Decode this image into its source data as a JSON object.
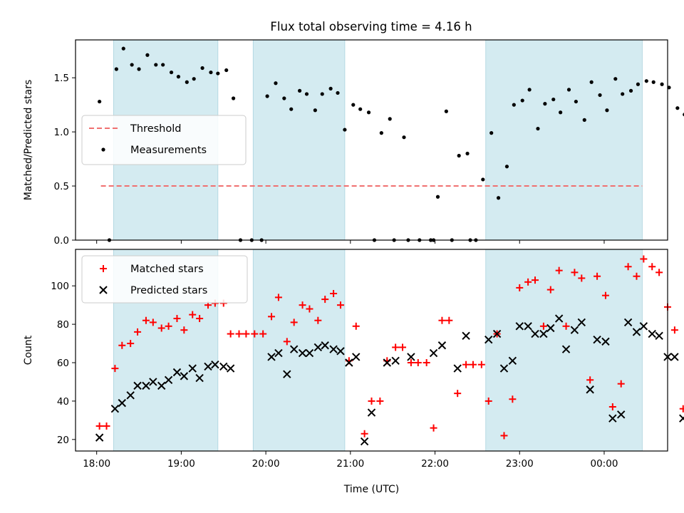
{
  "title": "Flux total observing time = 4.16 h",
  "chart_data": [
    {
      "type": "scatter",
      "panel": "top",
      "ylabel": "Matched/Predicted stars",
      "xlabel": "",
      "xlim": [
        "17:45",
        "24:45"
      ],
      "ylim": [
        0,
        1.85
      ],
      "yticks": [
        0.0,
        0.5,
        1.0,
        1.5
      ],
      "ytick_labels": [
        "0.0",
        "0.5",
        "1.0",
        "1.5"
      ],
      "legend_position": "center-left",
      "legend": [
        {
          "label": "Threshold",
          "marker": "dashed-line",
          "color": "#f07070"
        },
        {
          "label": "Measurements",
          "marker": "dot",
          "color": "#000000"
        }
      ],
      "threshold": {
        "y": 0.5,
        "x_start": "18:03",
        "x_end": "24:27",
        "color": "#f07070"
      },
      "shaded_intervals": [
        [
          "18:12",
          "19:26"
        ],
        [
          "19:51",
          "20:56"
        ],
        [
          "22:36",
          "24:27"
        ]
      ],
      "shade_color": "#d4ebf1",
      "series": [
        {
          "color": "#000000",
          "points": [
            [
              "18:02",
              1.28
            ],
            [
              "18:09",
              0.0
            ],
            [
              "18:14",
              1.58
            ],
            [
              "18:19",
              1.77
            ],
            [
              "18:25",
              1.62
            ],
            [
              "18:30",
              1.58
            ],
            [
              "18:36",
              1.71
            ],
            [
              "18:42",
              1.62
            ],
            [
              "18:47",
              1.62
            ],
            [
              "18:53",
              1.55
            ],
            [
              "18:58",
              1.51
            ],
            [
              "19:04",
              1.46
            ],
            [
              "19:09",
              1.49
            ],
            [
              "19:15",
              1.59
            ],
            [
              "19:21",
              1.55
            ],
            [
              "19:26",
              1.54
            ],
            [
              "19:32",
              1.57
            ],
            [
              "19:37",
              1.31
            ],
            [
              "19:42",
              0.0
            ],
            [
              "19:50",
              0.0
            ],
            [
              "19:57",
              0.0
            ],
            [
              "20:01",
              1.33
            ],
            [
              "20:07",
              1.45
            ],
            [
              "20:13",
              1.31
            ],
            [
              "20:18",
              1.21
            ],
            [
              "20:24",
              1.38
            ],
            [
              "20:29",
              1.35
            ],
            [
              "20:35",
              1.2
            ],
            [
              "20:40",
              1.35
            ],
            [
              "20:46",
              1.4
            ],
            [
              "20:51",
              1.36
            ],
            [
              "20:56",
              1.02
            ],
            [
              "21:02",
              1.25
            ],
            [
              "21:07",
              1.21
            ],
            [
              "21:13",
              1.18
            ],
            [
              "21:17",
              0.0
            ],
            [
              "21:22",
              0.99
            ],
            [
              "21:28",
              1.12
            ],
            [
              "21:31",
              0.0
            ],
            [
              "21:38",
              0.95
            ],
            [
              "21:41",
              0.0
            ],
            [
              "21:49",
              0.0
            ],
            [
              "21:57",
              0.0
            ],
            [
              "21:59",
              0.0
            ],
            [
              "22:02",
              0.4
            ],
            [
              "22:08",
              1.19
            ],
            [
              "22:12",
              0.0
            ],
            [
              "22:17",
              0.78
            ],
            [
              "22:23",
              0.8
            ],
            [
              "22:25",
              0.0
            ],
            [
              "22:29",
              0.0
            ],
            [
              "22:34",
              0.56
            ],
            [
              "22:40",
              0.99
            ],
            [
              "22:45",
              0.39
            ],
            [
              "22:51",
              0.68
            ],
            [
              "22:56",
              1.25
            ],
            [
              "23:02",
              1.29
            ],
            [
              "23:07",
              1.39
            ],
            [
              "23:13",
              1.03
            ],
            [
              "23:18",
              1.26
            ],
            [
              "23:24",
              1.3
            ],
            [
              "23:29",
              1.18
            ],
            [
              "23:35",
              1.39
            ],
            [
              "23:40",
              1.28
            ],
            [
              "23:46",
              1.11
            ],
            [
              "23:51",
              1.46
            ],
            [
              "23:57",
              1.34
            ],
            [
              "24:02",
              1.2
            ],
            [
              "24:08",
              1.49
            ],
            [
              "24:13",
              1.35
            ],
            [
              "24:19",
              1.38
            ],
            [
              "24:24",
              1.44
            ],
            [
              "24:30",
              1.47
            ],
            [
              "24:35",
              1.46
            ],
            [
              "24:41",
              1.44
            ],
            [
              "24:46",
              1.41
            ],
            [
              "24:52",
              1.22
            ],
            [
              "24:57",
              1.16
            ]
          ]
        }
      ]
    },
    {
      "type": "scatter",
      "panel": "bottom",
      "ylabel": "Count",
      "xlabel": "Time (UTC)",
      "xlim": [
        "17:45",
        "24:45"
      ],
      "ylim": [
        14,
        119
      ],
      "yticks": [
        20,
        40,
        60,
        80,
        100
      ],
      "ytick_labels": [
        "20",
        "40",
        "60",
        "80",
        "100"
      ],
      "xticks": [
        "18:00",
        "19:00",
        "20:00",
        "21:00",
        "22:00",
        "23:00",
        "24:00"
      ],
      "xtick_labels": [
        "18:00",
        "19:00",
        "20:00",
        "21:00",
        "22:00",
        "23:00",
        "00:00"
      ],
      "legend_position": "top-left",
      "legend": [
        {
          "label": "Matched stars",
          "marker": "plus",
          "color": "#ff0000"
        },
        {
          "label": "Predicted stars",
          "marker": "x",
          "color": "#000000"
        }
      ],
      "shaded_intervals": [
        [
          "18:12",
          "19:26"
        ],
        [
          "19:51",
          "20:56"
        ],
        [
          "22:36",
          "24:27"
        ]
      ],
      "shade_color": "#d4ebf1",
      "series": [
        {
          "name": "Matched stars",
          "color": "#ff0000",
          "points": [
            [
              "18:02",
              27
            ],
            [
              "18:07",
              27
            ],
            [
              "18:13",
              57
            ],
            [
              "18:18",
              69
            ],
            [
              "18:24",
              70
            ],
            [
              "18:29",
              76
            ],
            [
              "18:35",
              82
            ],
            [
              "18:40",
              81
            ],
            [
              "18:46",
              78
            ],
            [
              "18:51",
              79
            ],
            [
              "18:57",
              83
            ],
            [
              "19:02",
              77
            ],
            [
              "19:08",
              85
            ],
            [
              "19:13",
              83
            ],
            [
              "19:19",
              90
            ],
            [
              "19:24",
              91
            ],
            [
              "19:30",
              91
            ],
            [
              "19:35",
              75
            ],
            [
              "19:41",
              75
            ],
            [
              "19:46",
              75
            ],
            [
              "19:52",
              75
            ],
            [
              "19:58",
              75
            ],
            [
              "20:04",
              84
            ],
            [
              "20:09",
              94
            ],
            [
              "20:15",
              71
            ],
            [
              "20:20",
              81
            ],
            [
              "20:26",
              90
            ],
            [
              "20:31",
              88
            ],
            [
              "20:37",
              82
            ],
            [
              "20:42",
              93
            ],
            [
              "20:48",
              96
            ],
            [
              "20:53",
              90
            ],
            [
              "20:59",
              61
            ],
            [
              "21:04",
              79
            ],
            [
              "21:10",
              23
            ],
            [
              "21:15",
              40
            ],
            [
              "21:21",
              40
            ],
            [
              "21:26",
              61
            ],
            [
              "21:32",
              68
            ],
            [
              "21:37",
              68
            ],
            [
              "21:43",
              60
            ],
            [
              "21:48",
              60
            ],
            [
              "21:54",
              60
            ],
            [
              "21:59",
              26
            ],
            [
              "22:05",
              82
            ],
            [
              "22:10",
              82
            ],
            [
              "22:16",
              44
            ],
            [
              "22:22",
              59
            ],
            [
              "22:27",
              59
            ],
            [
              "22:33",
              59
            ],
            [
              "22:38",
              40
            ],
            [
              "22:44",
              75
            ],
            [
              "22:49",
              22
            ],
            [
              "22:55",
              41
            ],
            [
              "23:00",
              99
            ],
            [
              "23:06",
              102
            ],
            [
              "23:11",
              103
            ],
            [
              "23:17",
              79
            ],
            [
              "23:22",
              98
            ],
            [
              "23:28",
              108
            ],
            [
              "23:33",
              79
            ],
            [
              "23:39",
              107
            ],
            [
              "23:44",
              104
            ],
            [
              "23:50",
              51
            ],
            [
              "23:55",
              105
            ],
            [
              "24:01",
              95
            ],
            [
              "24:06",
              37
            ],
            [
              "24:12",
              49
            ],
            [
              "24:17",
              110
            ],
            [
              "24:23",
              105
            ],
            [
              "24:28",
              114
            ],
            [
              "24:34",
              110
            ],
            [
              "24:39",
              107
            ],
            [
              "24:45",
              89
            ],
            [
              "24:50",
              77
            ],
            [
              "24:56",
              36
            ]
          ]
        },
        {
          "name": "Predicted stars",
          "color": "#000000",
          "points": [
            [
              "18:02",
              21
            ],
            [
              "18:13",
              36
            ],
            [
              "18:18",
              39
            ],
            [
              "18:24",
              43
            ],
            [
              "18:29",
              48
            ],
            [
              "18:35",
              48
            ],
            [
              "18:40",
              50
            ],
            [
              "18:46",
              48
            ],
            [
              "18:51",
              51
            ],
            [
              "18:57",
              55
            ],
            [
              "19:02",
              53
            ],
            [
              "19:08",
              57
            ],
            [
              "19:13",
              52
            ],
            [
              "19:19",
              58
            ],
            [
              "19:24",
              59
            ],
            [
              "19:30",
              58
            ],
            [
              "19:35",
              57
            ],
            [
              "20:04",
              63
            ],
            [
              "20:09",
              65
            ],
            [
              "20:15",
              54
            ],
            [
              "20:20",
              67
            ],
            [
              "20:26",
              65
            ],
            [
              "20:31",
              65
            ],
            [
              "20:37",
              68
            ],
            [
              "20:42",
              69
            ],
            [
              "20:48",
              67
            ],
            [
              "20:53",
              66
            ],
            [
              "20:59",
              60
            ],
            [
              "21:04",
              63
            ],
            [
              "21:10",
              19
            ],
            [
              "21:15",
              34
            ],
            [
              "21:26",
              60
            ],
            [
              "21:32",
              61
            ],
            [
              "21:43",
              63
            ],
            [
              "21:59",
              65
            ],
            [
              "22:05",
              69
            ],
            [
              "22:16",
              57
            ],
            [
              "22:22",
              74
            ],
            [
              "22:38",
              72
            ],
            [
              "22:44",
              75
            ],
            [
              "22:49",
              57
            ],
            [
              "22:55",
              61
            ],
            [
              "23:00",
              79
            ],
            [
              "23:06",
              79
            ],
            [
              "23:11",
              75
            ],
            [
              "23:17",
              75
            ],
            [
              "23:22",
              78
            ],
            [
              "23:28",
              83
            ],
            [
              "23:33",
              67
            ],
            [
              "23:39",
              77
            ],
            [
              "23:44",
              81
            ],
            [
              "23:50",
              46
            ],
            [
              "23:55",
              72
            ],
            [
              "24:01",
              71
            ],
            [
              "24:06",
              31
            ],
            [
              "24:12",
              33
            ],
            [
              "24:17",
              81
            ],
            [
              "24:23",
              76
            ],
            [
              "24:28",
              79
            ],
            [
              "24:34",
              75
            ],
            [
              "24:39",
              74
            ],
            [
              "24:45",
              63
            ],
            [
              "24:50",
              63
            ],
            [
              "24:56",
              31
            ]
          ]
        }
      ]
    }
  ]
}
